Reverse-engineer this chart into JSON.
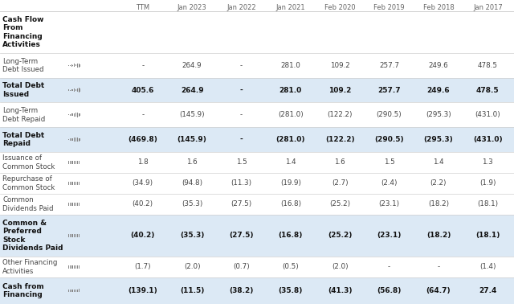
{
  "col_headers": [
    "TTM",
    "Jan 2023",
    "Jan 2022",
    "Jan 2021",
    "Feb 2020",
    "Feb 2019",
    "Feb 2018",
    "Jan 2017"
  ],
  "rows": [
    {
      "label": "Cash Flow\nFrom\nFinancing\nActivities",
      "sparkline": "",
      "values": [
        "",
        "",
        "",
        "",
        "",
        "",
        "",
        ""
      ],
      "bold": true,
      "is_header": true,
      "bg": "#ffffff"
    },
    {
      "label": "Long-Term\nDebt Issued",
      "sparkline": true,
      "values": [
        "-",
        "264.9",
        "-",
        "281.0",
        "109.2",
        "257.7",
        "249.6",
        "478.5"
      ],
      "bold": false,
      "is_header": false,
      "bg": "#ffffff"
    },
    {
      "label": "Total Debt\nIssued",
      "sparkline": true,
      "values": [
        "405.6",
        "264.9",
        "-",
        "281.0",
        "109.2",
        "257.7",
        "249.6",
        "478.5"
      ],
      "bold": true,
      "is_header": false,
      "bg": "#dce9f5"
    },
    {
      "label": "Long-Term\nDebt Repaid",
      "sparkline": true,
      "values": [
        "-",
        "(145.9)",
        "-",
        "(281.0)",
        "(122.2)",
        "(290.5)",
        "(295.3)",
        "(431.0)"
      ],
      "bold": false,
      "is_header": false,
      "bg": "#ffffff"
    },
    {
      "label": "Total Debt\nRepaid",
      "sparkline": true,
      "values": [
        "(469.8)",
        "(145.9)",
        "-",
        "(281.0)",
        "(122.2)",
        "(290.5)",
        "(295.3)",
        "(431.0)"
      ],
      "bold": true,
      "is_header": false,
      "bg": "#dce9f5"
    },
    {
      "label": "Issuance of\nCommon Stock",
      "sparkline": true,
      "values": [
        "1.8",
        "1.6",
        "1.5",
        "1.4",
        "1.6",
        "1.5",
        "1.4",
        "1.3"
      ],
      "bold": false,
      "is_header": false,
      "bg": "#ffffff"
    },
    {
      "label": "Repurchase of\nCommon Stock",
      "sparkline": true,
      "values": [
        "(34.9)",
        "(94.8)",
        "(11.3)",
        "(19.9)",
        "(2.7)",
        "(2.4)",
        "(2.2)",
        "(1.9)"
      ],
      "bold": false,
      "is_header": false,
      "bg": "#ffffff"
    },
    {
      "label": "Common\nDividends Paid",
      "sparkline": true,
      "values": [
        "(40.2)",
        "(35.3)",
        "(27.5)",
        "(16.8)",
        "(25.2)",
        "(23.1)",
        "(18.2)",
        "(18.1)"
      ],
      "bold": false,
      "is_header": false,
      "bg": "#ffffff"
    },
    {
      "label": "Common &\nPreferred\nStock\nDividends Paid",
      "sparkline": true,
      "values": [
        "(40.2)",
        "(35.3)",
        "(27.5)",
        "(16.8)",
        "(25.2)",
        "(23.1)",
        "(18.2)",
        "(18.1)"
      ],
      "bold": true,
      "is_header": false,
      "bg": "#dce9f5"
    },
    {
      "label": "Other Financing\nActivities",
      "sparkline": true,
      "values": [
        "(1.7)",
        "(2.0)",
        "(0.7)",
        "(0.5)",
        "(2.0)",
        "-",
        "-",
        "(1.4)"
      ],
      "bold": false,
      "is_header": false,
      "bg": "#ffffff"
    },
    {
      "label": "Cash from\nFinancing",
      "sparkline": true,
      "values": [
        "(139.1)",
        "(11.5)",
        "(38.2)",
        "(35.8)",
        "(41.3)",
        "(56.8)",
        "(64.7)",
        "27.4"
      ],
      "bold": true,
      "is_header": false,
      "bg": "#dce9f5"
    }
  ],
  "header_text_color": "#666666",
  "bold_text_color": "#111111",
  "normal_text_color": "#444444",
  "separator_color": "#d0d0d0",
  "bg_color": "#ffffff"
}
